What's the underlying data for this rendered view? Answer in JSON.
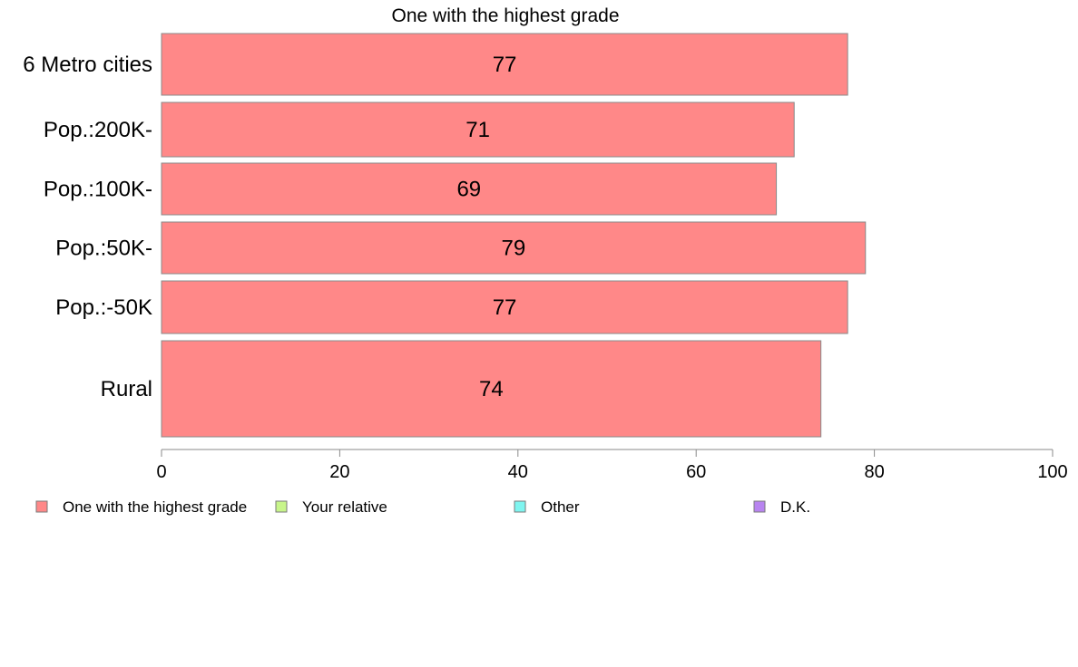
{
  "chart_data": {
    "type": "bar",
    "orientation": "horizontal",
    "title": "One with the highest grade",
    "xlabel": "",
    "ylabel": "",
    "categories": [
      "6 Metro cities",
      "Pop.:200K-",
      "Pop.:100K-",
      "Pop.:50K-",
      "Pop.:-50K",
      "Rural"
    ],
    "series": [
      {
        "name": "One with the highest grade",
        "values": [
          77,
          71,
          69,
          79,
          77,
          74
        ],
        "color": "#ff8888"
      }
    ],
    "data_labels": [
      "77",
      "71",
      "69",
      "79",
      "77",
      "74"
    ],
    "xlim": [
      0,
      100
    ],
    "x_ticks": [
      0,
      20,
      40,
      60,
      80,
      100
    ],
    "x_tick_labels": [
      "0",
      "20",
      "40",
      "60",
      "80",
      "100"
    ],
    "grid": false,
    "legend_position": "bottom",
    "legend": [
      {
        "label": "One with the highest grade",
        "color": "#ff8888"
      },
      {
        "label": "Your relative",
        "color": "#c8f58a"
      },
      {
        "label": "Other",
        "color": "#7ff5f0"
      },
      {
        "label": "D.K.",
        "color": "#b884f0"
      }
    ]
  }
}
